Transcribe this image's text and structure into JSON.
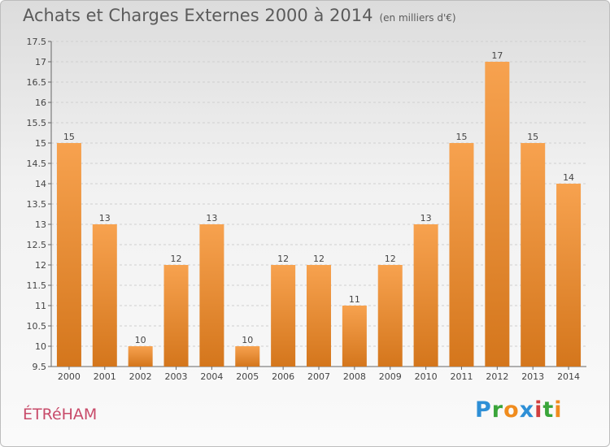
{
  "header": {
    "title": "Achats et Charges Externes 2000 à 2014",
    "unit": "(en milliers d'€)"
  },
  "footer": {
    "commune": "ÉTRéHAM",
    "logo_letters": [
      "P",
      "r",
      "o",
      "x",
      "i",
      "t",
      "i"
    ],
    "logo_colors": [
      "#2e8fd6",
      "#3aa53a",
      "#f08c1e",
      "#2e8fd6",
      "#d13f3f",
      "#3aa53a",
      "#f08c1e"
    ]
  },
  "chart_data": {
    "type": "bar",
    "categories": [
      "2000",
      "2001",
      "2002",
      "2003",
      "2004",
      "2005",
      "2006",
      "2007",
      "2008",
      "2009",
      "2010",
      "2011",
      "2012",
      "2013",
      "2014"
    ],
    "values": [
      15,
      13,
      10,
      12,
      13,
      10,
      12,
      12,
      11,
      12,
      13,
      15,
      17,
      15,
      14
    ],
    "ylim": [
      9.5,
      17.5
    ],
    "yticks": [
      9.5,
      10,
      10.5,
      11,
      11.5,
      12,
      12.5,
      13,
      13.5,
      14,
      14.5,
      15,
      15.5,
      16,
      16.5,
      17,
      17.5
    ],
    "bar_color_top": "#f7a24f",
    "bar_color_bottom": "#d4761c",
    "grid": true
  }
}
